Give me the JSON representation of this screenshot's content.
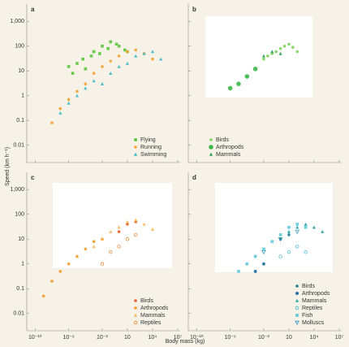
{
  "ylabel": "Speed (km h⁻¹)",
  "xlabel": "Body mass (kg)",
  "chart_data": [
    {
      "type": "scatter",
      "panel": "a",
      "log_x": true,
      "log_y": true,
      "legend": "lower right",
      "xlim": [
        1e-11,
        20000000.0
      ],
      "ylim": [
        0.002,
        5000
      ],
      "xticks": [
        1e-10,
        1e-06,
        0.01,
        10,
        10000,
        10000000
      ],
      "yticks": [
        0.01,
        0.1,
        1,
        10,
        100,
        {
          "value": 1000,
          "label": "1,000"
        }
      ],
      "series": [
        {
          "name": "Flying",
          "color": "#5cc43c",
          "marker": "square",
          "x": [
            1e-06,
            3e-06,
            1e-05,
            5e-05,
            0.0001,
            0.0005,
            0.001,
            0.005,
            0.01,
            0.05,
            0.1,
            0.5,
            1,
            5,
            10
          ],
          "values": [
            15,
            8,
            20,
            30,
            12,
            40,
            60,
            50,
            100,
            80,
            150,
            120,
            100,
            70,
            60
          ]
        },
        {
          "name": "Running",
          "color": "#f5a030",
          "marker": "circle",
          "x": [
            1e-08,
            1e-07,
            1e-06,
            1e-05,
            0.0001,
            0.001,
            0.01,
            0.1,
            1,
            10,
            100,
            1000,
            10000
          ],
          "values": [
            0.08,
            0.3,
            0.7,
            1.5,
            3,
            8,
            15,
            25,
            40,
            60,
            70,
            50,
            30
          ]
        },
        {
          "name": "Swimming",
          "color": "#3fb8c8",
          "marker": "triangle",
          "x": [
            1e-07,
            1e-06,
            1e-05,
            0.0001,
            0.001,
            0.01,
            0.1,
            1,
            10,
            100,
            1000,
            10000,
            100000
          ],
          "values": [
            0.2,
            0.5,
            1,
            2,
            4,
            3,
            8,
            15,
            20,
            40,
            50,
            60,
            30
          ]
        }
      ]
    },
    {
      "type": "scatter",
      "panel": "b",
      "log_x": true,
      "log_y": true,
      "legend": "lower left",
      "xlim": [
        1e-11,
        20000000.0
      ],
      "ylim": [
        0.002,
        5000
      ],
      "xticks": [
        1e-10,
        1e-06,
        0.01,
        10,
        10000,
        10000000
      ],
      "yticks": [
        0.01,
        0.1,
        1,
        10,
        100,
        1000
      ],
      "series": [
        {
          "name": "Birds",
          "color": "#7dd35c",
          "marker": "circle",
          "x": [
            0.01,
            0.03,
            0.1,
            0.3,
            1,
            3,
            10,
            30,
            100
          ],
          "values": [
            30,
            40,
            50,
            60,
            80,
            100,
            120,
            90,
            60
          ]
        },
        {
          "name": "Arthropods",
          "color": "#3cb84a",
          "marker": "bigcircle",
          "x": [
            1e-06,
            1e-05,
            0.0001,
            0.001
          ],
          "values": [
            2,
            3,
            6,
            12
          ]
        },
        {
          "name": "Mammals",
          "color": "#2e9e55",
          "marker": "triangle",
          "x": [
            0.01,
            0.1,
            1
          ],
          "values": [
            40,
            60,
            50
          ]
        }
      ]
    },
    {
      "type": "scatter",
      "panel": "c",
      "log_x": true,
      "log_y": true,
      "legend": "lower right",
      "xlim": [
        1e-11,
        20000000.0
      ],
      "ylim": [
        0.002,
        5000
      ],
      "xticks": [
        {
          "value": 1e-10,
          "label": "10⁻¹⁰"
        },
        {
          "value": 1e-06,
          "label": "10⁻⁶"
        },
        {
          "value": 0.01,
          "label": "10⁻²"
        },
        10,
        {
          "value": 10000,
          "label": "10⁴"
        },
        {
          "value": 10000000,
          "label": "10⁷"
        }
      ],
      "yticks": [
        0.01,
        0.1,
        1,
        10,
        100,
        {
          "value": 1000,
          "label": "1,000"
        }
      ],
      "series": [
        {
          "name": "Birds",
          "color": "#e8642a",
          "marker": "circle",
          "x": [
            1,
            10,
            100
          ],
          "values": [
            20,
            40,
            50
          ]
        },
        {
          "name": "Arthropods",
          "color": "#f39a28",
          "marker": "circle",
          "x": [
            1e-09,
            1e-08,
            1e-07,
            1e-06,
            1e-05,
            0.0001,
            0.001,
            0.01
          ],
          "values": [
            0.05,
            0.2,
            0.5,
            1,
            2,
            4,
            8,
            10
          ]
        },
        {
          "name": "Mammals",
          "color": "#f7b85a",
          "marker": "triangle",
          "x": [
            0.001,
            0.01,
            0.1,
            1,
            10,
            100,
            1000,
            10000
          ],
          "values": [
            5,
            10,
            20,
            30,
            50,
            60,
            40,
            25
          ]
        },
        {
          "name": "Reptiles",
          "color": "#e8862a",
          "marker": "open",
          "x": [
            0.01,
            0.1,
            1,
            10,
            100
          ],
          "values": [
            1,
            3,
            5,
            10,
            15
          ]
        }
      ]
    },
    {
      "type": "scatter",
      "panel": "d",
      "log_x": true,
      "log_y": true,
      "legend": "lower right",
      "xlim": [
        1e-11,
        20000000.0
      ],
      "ylim": [
        0.002,
        5000
      ],
      "xticks": [
        {
          "value": 1e-10,
          "label": "10⁻¹⁰"
        },
        {
          "value": 1e-06,
          "label": "10⁻⁶"
        },
        {
          "value": 0.01,
          "label": "10⁻²"
        },
        10,
        {
          "value": 10000,
          "label": "10⁴"
        },
        {
          "value": 10000000,
          "label": "10⁷"
        }
      ],
      "yticks": [
        0.01,
        0.1,
        1,
        10,
        100,
        1000
      ],
      "series": [
        {
          "name": "Birds",
          "color": "#1e7f8c",
          "marker": "circle",
          "x": [
            1,
            10
          ],
          "values": [
            10,
            15
          ]
        },
        {
          "name": "Arthropods",
          "color": "#1e6f9c",
          "marker": "hexagon",
          "x": [
            0.001,
            0.01
          ],
          "values": [
            0.5,
            1
          ]
        },
        {
          "name": "Mammals",
          "color": "#2aa0a8",
          "marker": "triangle",
          "x": [
            10,
            100,
            1000,
            10000,
            100000
          ],
          "values": [
            20,
            30,
            40,
            30,
            20
          ]
        },
        {
          "name": "Reptiles",
          "color": "#3fb8c8",
          "marker": "open",
          "x": [
            1,
            10,
            100,
            1000
          ],
          "values": [
            2,
            3,
            5,
            3
          ]
        },
        {
          "name": "Fish",
          "color": "#5cc8d8",
          "marker": "square",
          "x": [
            1e-05,
            0.0001,
            0.001,
            0.01,
            0.1,
            1,
            10,
            100,
            1000
          ],
          "values": [
            0.5,
            1,
            2,
            4,
            8,
            15,
            30,
            40,
            30
          ]
        },
        {
          "name": "Molluscs",
          "color": "#2a8fb8",
          "marker": "invtriangle",
          "x": [
            0.01,
            1,
            100
          ],
          "values": [
            3,
            10,
            20
          ]
        }
      ]
    }
  ]
}
